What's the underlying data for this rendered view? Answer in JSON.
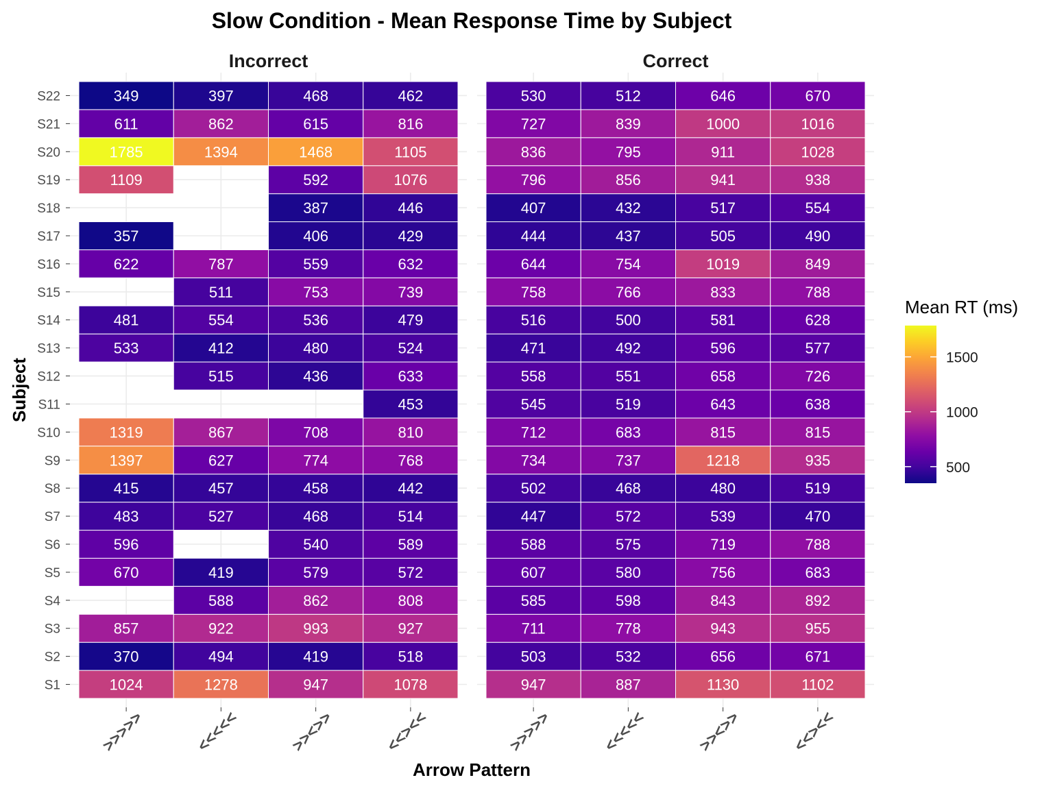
{
  "chart_data": {
    "type": "heatmap",
    "title": "Slow Condition - Mean Response Time by Subject",
    "xlabel": "Arrow Pattern",
    "ylabel": "Subject",
    "x_categories": [
      ">>>>>",
      "<<<<<",
      ">><>>",
      "<<><<"
    ],
    "y_categories": [
      "S1",
      "S2",
      "S3",
      "S4",
      "S5",
      "S6",
      "S7",
      "S8",
      "S9",
      "S10",
      "S11",
      "S12",
      "S13",
      "S14",
      "S15",
      "S16",
      "S17",
      "S18",
      "S19",
      "S20",
      "S21",
      "S22"
    ],
    "panels": [
      {
        "name": "Incorrect",
        "values": [
          [
            1024,
            1278,
            947,
            1078
          ],
          [
            370,
            494,
            419,
            518
          ],
          [
            857,
            922,
            993,
            927
          ],
          [
            null,
            588,
            862,
            808
          ],
          [
            670,
            419,
            579,
            572
          ],
          [
            596,
            null,
            540,
            589
          ],
          [
            483,
            527,
            468,
            514
          ],
          [
            415,
            457,
            458,
            442
          ],
          [
            1397,
            627,
            774,
            768
          ],
          [
            1319,
            867,
            708,
            810
          ],
          [
            null,
            null,
            null,
            453
          ],
          [
            null,
            515,
            436,
            633
          ],
          [
            533,
            412,
            480,
            524
          ],
          [
            481,
            554,
            536,
            479
          ],
          [
            null,
            511,
            753,
            739
          ],
          [
            622,
            787,
            559,
            632
          ],
          [
            357,
            null,
            406,
            429
          ],
          [
            null,
            null,
            387,
            446
          ],
          [
            1109,
            null,
            592,
            1076
          ],
          [
            1785,
            1394,
            1468,
            1105
          ],
          [
            611,
            862,
            615,
            816
          ],
          [
            349,
            397,
            468,
            462
          ]
        ]
      },
      {
        "name": "Correct",
        "values": [
          [
            947,
            887,
            1130,
            1102
          ],
          [
            503,
            532,
            656,
            671
          ],
          [
            711,
            778,
            943,
            955
          ],
          [
            585,
            598,
            843,
            892
          ],
          [
            607,
            580,
            756,
            683
          ],
          [
            588,
            575,
            719,
            788
          ],
          [
            447,
            572,
            539,
            470
          ],
          [
            502,
            468,
            480,
            519
          ],
          [
            734,
            737,
            1218,
            935
          ],
          [
            712,
            683,
            815,
            815
          ],
          [
            545,
            519,
            643,
            638
          ],
          [
            558,
            551,
            658,
            726
          ],
          [
            471,
            492,
            596,
            577
          ],
          [
            516,
            500,
            581,
            628
          ],
          [
            758,
            766,
            833,
            788
          ],
          [
            644,
            754,
            1019,
            849
          ],
          [
            444,
            437,
            505,
            490
          ],
          [
            407,
            432,
            517,
            554
          ],
          [
            796,
            856,
            941,
            938
          ],
          [
            836,
            795,
            911,
            1028
          ],
          [
            727,
            839,
            1000,
            1016
          ],
          [
            530,
            512,
            646,
            670
          ]
        ]
      }
    ],
    "legend": {
      "title": "Mean RT (ms)",
      "ticks": [
        500,
        1000,
        1500
      ],
      "range": [
        349,
        1785
      ],
      "colormap": "plasma",
      "position": "right"
    },
    "colors": {
      "low": "#0d0887",
      "high": "#f0f921",
      "missing": "#ffffff"
    },
    "grid": true
  }
}
